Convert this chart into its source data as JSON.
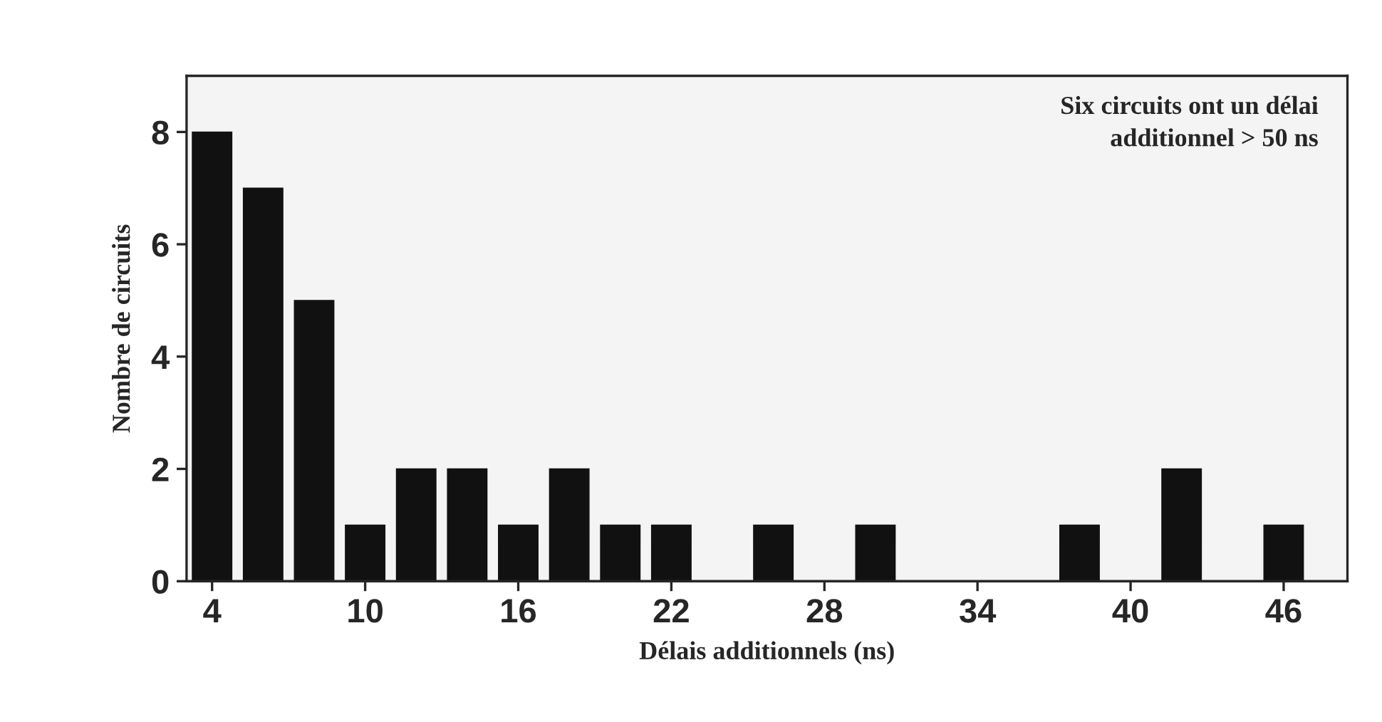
{
  "chart_data": {
    "type": "bar",
    "xlabel": "Délais additionnels (ns)",
    "ylabel": "Nombre de circuits",
    "annotations": [
      "Six circuits ont un délai\nadditionnel > 50 ns"
    ],
    "x": [
      4,
      6,
      8,
      10,
      12,
      14,
      16,
      18,
      20,
      22,
      24,
      26,
      28,
      30,
      32,
      34,
      36,
      38,
      40,
      42,
      44,
      46
    ],
    "values": [
      8,
      7,
      5,
      1,
      2,
      2,
      1,
      2,
      1,
      1,
      0,
      1,
      0,
      1,
      0,
      0,
      0,
      1,
      0,
      2,
      0,
      1
    ],
    "color": "#111111",
    "xlim": [
      3,
      48.5
    ],
    "xticks": [
      4,
      10,
      16,
      22,
      28,
      34,
      40,
      46
    ],
    "ylim": [
      0,
      9
    ],
    "yticks": [
      0,
      2,
      4,
      6,
      8
    ],
    "grid": false,
    "legend": false
  }
}
